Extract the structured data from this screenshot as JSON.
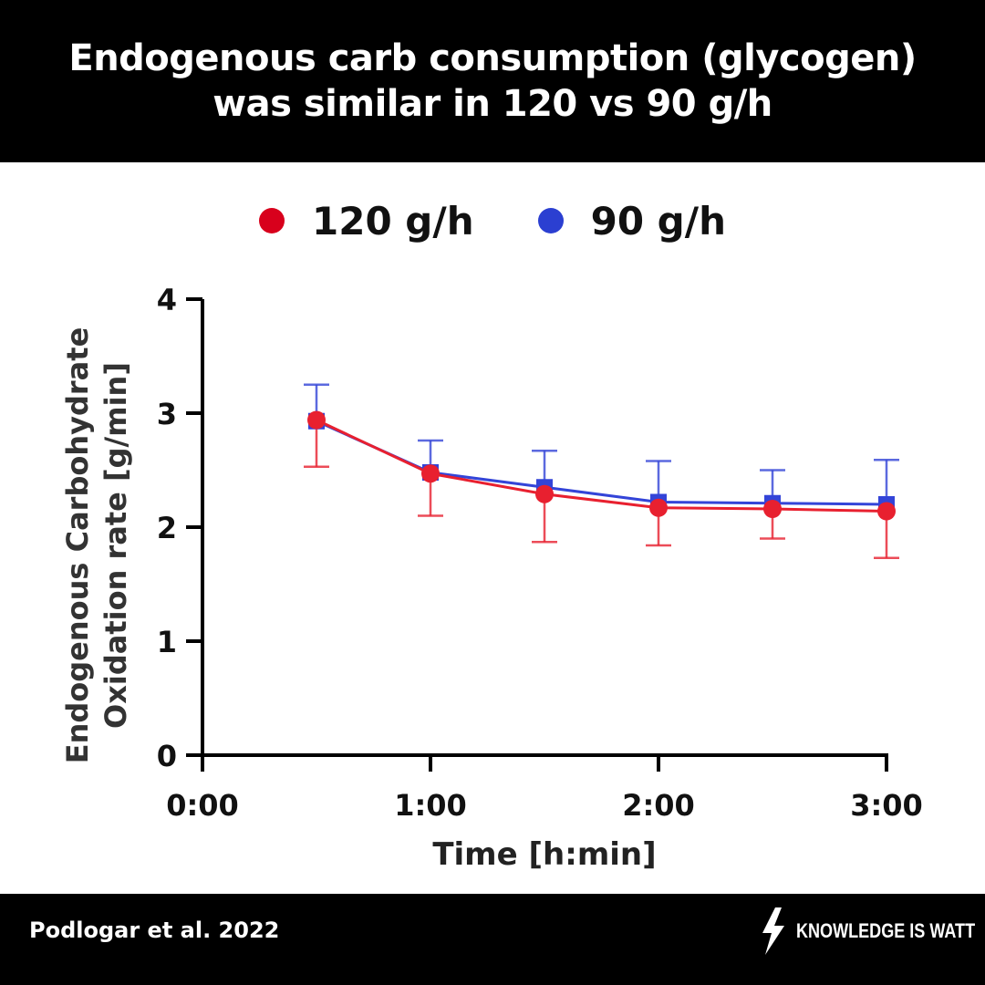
{
  "header": {
    "title_line1": "Endogenous carb consumption (glycogen)",
    "title_line2": "was similar in 120 vs 90 g/h"
  },
  "legend": {
    "items": [
      {
        "label": "120 g/h",
        "color": "#d8001c"
      },
      {
        "label": "90 g/h",
        "color": "#2b3fd1"
      }
    ]
  },
  "footer": {
    "citation": "Podlogar et al. 2022",
    "brand": "KNOWLEDGE IS WATT",
    "brand_icon": "lightning-bolt-icon"
  },
  "chart_data": {
    "type": "line",
    "xlabel": "Time [h:min]",
    "ylabel_line1": "Endogenous Carbohydrate",
    "ylabel_line2": "Oxidation rate [g/min]",
    "x_ticks": [
      "0:00",
      "1:00",
      "2:00",
      "3:00"
    ],
    "x_tick_values": [
      0,
      60,
      120,
      180
    ],
    "y_ticks": [
      "0",
      "1",
      "2",
      "3",
      "4"
    ],
    "xlim": [
      0,
      180
    ],
    "ylim": [
      0,
      4
    ],
    "x": [
      30,
      60,
      90,
      120,
      150,
      180
    ],
    "series": [
      {
        "name": "120 g/h",
        "color": "#e8202f",
        "marker": "circle",
        "values": [
          2.94,
          2.47,
          2.29,
          2.17,
          2.16,
          2.14
        ],
        "error": [
          0.41,
          0.37,
          0.42,
          0.33,
          0.26,
          0.41
        ]
      },
      {
        "name": "90 g/h",
        "color": "#3344d8",
        "marker": "square",
        "values": [
          2.93,
          2.48,
          2.35,
          2.22,
          2.21,
          2.2
        ],
        "error": [
          0.32,
          0.28,
          0.32,
          0.36,
          0.29,
          0.39
        ]
      }
    ]
  }
}
